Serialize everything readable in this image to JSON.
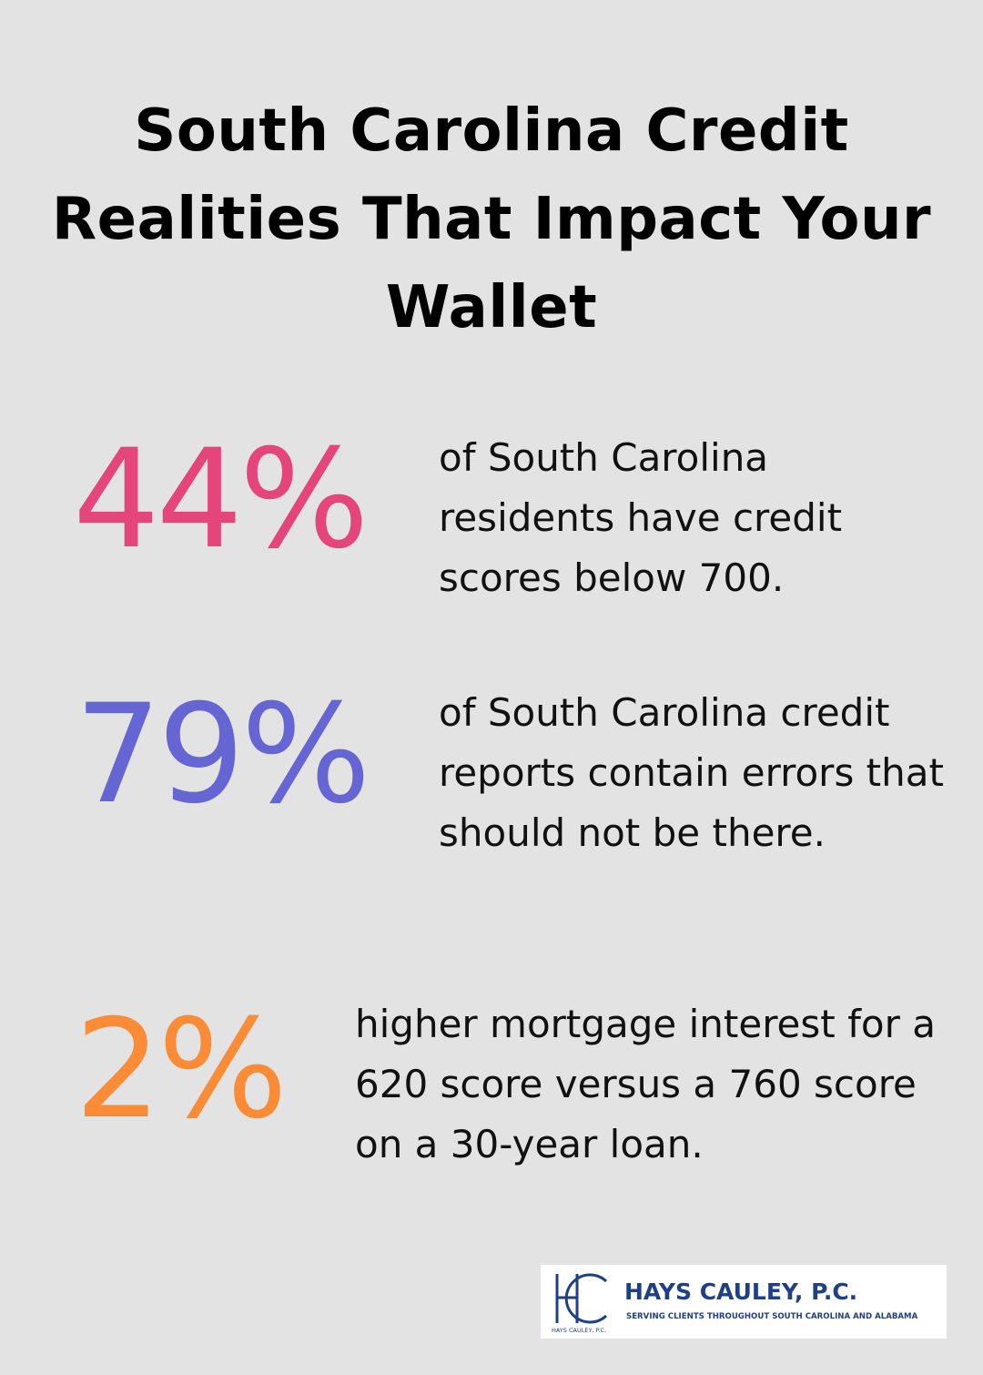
{
  "title": "South Carolina Credit Realities That Impact Your Wallet",
  "stats": [
    {
      "value": "44%",
      "description": "of South Carolina residents have credit scores below 700.",
      "color": "#e4457a"
    },
    {
      "value": "79%",
      "description": "of South Carolina credit reports contain errors that should not be there.",
      "color": "#6565d3"
    },
    {
      "value": "2%",
      "description": "higher mortgage interest for a 620 score versus a 760 score on a 30-year loan.",
      "color": "#fa8c37"
    }
  ],
  "logo": {
    "name": "HAYS CAULEY, P.C.",
    "tagline": "SERVING CLIENTS THROUGHOUT SOUTH CAROLINA AND ALABAMA",
    "small_text": "HAYS CAULEY, P.C.",
    "brand_color": "#1f3f86",
    "icon": "hc-monogram-icon"
  },
  "background_color": "#e2e3e2"
}
